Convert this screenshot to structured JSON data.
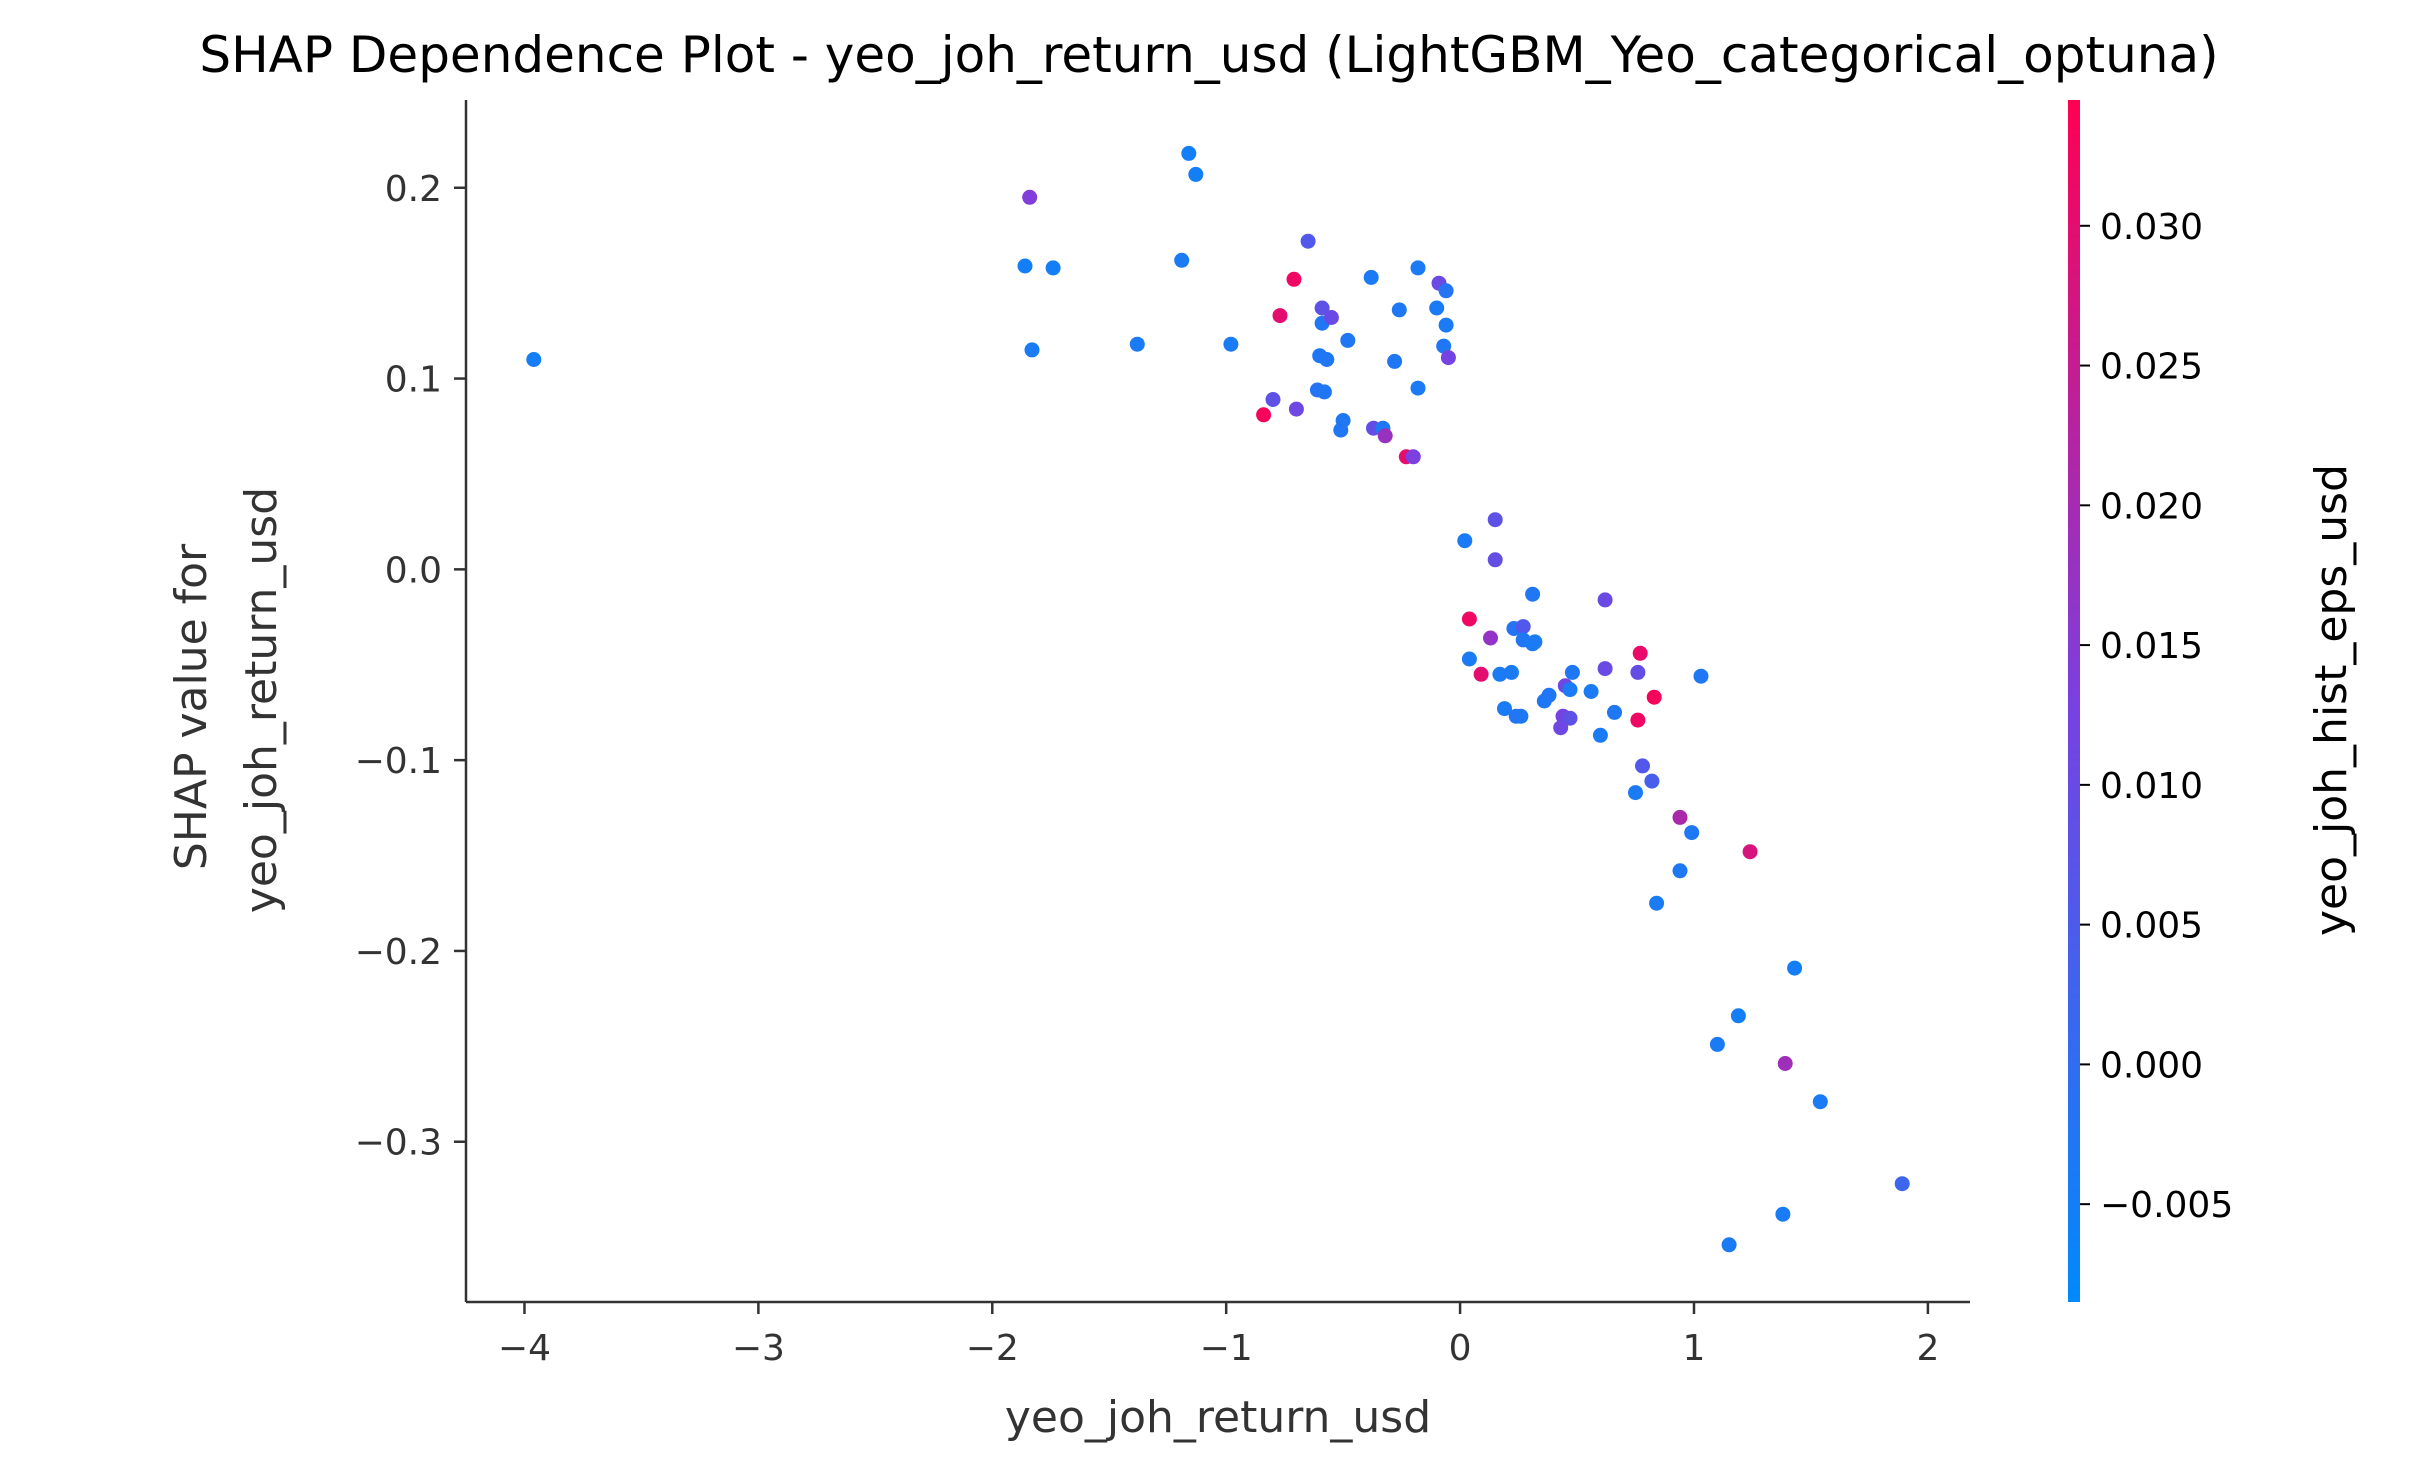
{
  "chart_data": {
    "type": "scatter",
    "title": "SHAP Dependence Plot - yeo_joh_return_usd (LightGBM_Yeo_categorical_optuna)",
    "xlabel": "yeo_joh_return_usd",
    "ylabel": [
      "SHAP value for",
      "yeo_joh_return_usd"
    ],
    "xlim": [
      -4.25,
      2.18
    ],
    "ylim": [
      -0.384,
      0.246
    ],
    "xticks": [
      -4,
      -3,
      -2,
      -1,
      0,
      1,
      2
    ],
    "xtick_labels": [
      "−4",
      "−3",
      "−2",
      "−1",
      "0",
      "1",
      "2"
    ],
    "yticks": [
      0.2,
      0.1,
      0.0,
      -0.1,
      -0.2,
      -0.3
    ],
    "ytick_labels": [
      "0.2",
      "0.1",
      "0.0",
      "−0.1",
      "−0.2",
      "−0.3"
    ],
    "grid": false,
    "colorbar": {
      "label": "yeo_joh_hist_eps_usd",
      "range": [
        -0.0085,
        0.0345
      ],
      "ticks": [
        0.03,
        0.025,
        0.02,
        0.015,
        0.01,
        0.005,
        0.0,
        -0.005
      ],
      "tick_labels": [
        "0.030",
        "0.025",
        "0.020",
        "0.015",
        "0.010",
        "0.005",
        "0.000",
        "−0.005"
      ],
      "colormap": [
        "#008afb",
        "#7a40e0",
        "#ff0052"
      ]
    },
    "points": [
      {
        "x": -3.96,
        "y": 0.11,
        "c": -0.005
      },
      {
        "x": -1.84,
        "y": 0.195,
        "c": 0.014
      },
      {
        "x": -1.86,
        "y": 0.159,
        "c": -0.005
      },
      {
        "x": -1.74,
        "y": 0.158,
        "c": -0.005
      },
      {
        "x": -1.83,
        "y": 0.115,
        "c": -0.004
      },
      {
        "x": -1.38,
        "y": 0.118,
        "c": -0.004
      },
      {
        "x": -1.16,
        "y": 0.218,
        "c": -0.005
      },
      {
        "x": -1.13,
        "y": 0.207,
        "c": -0.005
      },
      {
        "x": -1.19,
        "y": 0.162,
        "c": -0.004
      },
      {
        "x": -0.98,
        "y": 0.118,
        "c": -0.004
      },
      {
        "x": -0.65,
        "y": 0.172,
        "c": 0.006
      },
      {
        "x": -0.71,
        "y": 0.152,
        "c": 0.032
      },
      {
        "x": -0.77,
        "y": 0.133,
        "c": 0.03
      },
      {
        "x": -0.59,
        "y": 0.137,
        "c": 0.008
      },
      {
        "x": -0.59,
        "y": 0.129,
        "c": -0.003
      },
      {
        "x": -0.55,
        "y": 0.132,
        "c": 0.01
      },
      {
        "x": -0.48,
        "y": 0.12,
        "c": -0.003
      },
      {
        "x": -0.6,
        "y": 0.112,
        "c": -0.003
      },
      {
        "x": -0.57,
        "y": 0.11,
        "c": -0.003
      },
      {
        "x": -0.38,
        "y": 0.153,
        "c": -0.004
      },
      {
        "x": -0.18,
        "y": 0.158,
        "c": -0.004
      },
      {
        "x": -0.26,
        "y": 0.136,
        "c": -0.003
      },
      {
        "x": -0.09,
        "y": 0.15,
        "c": 0.01
      },
      {
        "x": -0.06,
        "y": 0.146,
        "c": -0.002
      },
      {
        "x": -0.1,
        "y": 0.137,
        "c": -0.004
      },
      {
        "x": -0.06,
        "y": 0.128,
        "c": -0.004
      },
      {
        "x": -0.07,
        "y": 0.117,
        "c": -0.003
      },
      {
        "x": -0.05,
        "y": 0.111,
        "c": 0.012
      },
      {
        "x": -0.28,
        "y": 0.109,
        "c": -0.003
      },
      {
        "x": -0.18,
        "y": 0.095,
        "c": -0.004
      },
      {
        "x": -0.61,
        "y": 0.094,
        "c": -0.002
      },
      {
        "x": -0.58,
        "y": 0.093,
        "c": -0.003
      },
      {
        "x": -0.8,
        "y": 0.089,
        "c": 0.008
      },
      {
        "x": -0.84,
        "y": 0.081,
        "c": 0.033
      },
      {
        "x": -0.7,
        "y": 0.084,
        "c": 0.011
      },
      {
        "x": -0.5,
        "y": 0.078,
        "c": -0.003
      },
      {
        "x": -0.51,
        "y": 0.073,
        "c": -0.003
      },
      {
        "x": -0.37,
        "y": 0.074,
        "c": 0.009
      },
      {
        "x": -0.33,
        "y": 0.074,
        "c": -0.003
      },
      {
        "x": -0.32,
        "y": 0.07,
        "c": 0.018
      },
      {
        "x": -0.23,
        "y": 0.059,
        "c": 0.03
      },
      {
        "x": -0.2,
        "y": 0.059,
        "c": 0.013
      },
      {
        "x": 0.15,
        "y": 0.026,
        "c": 0.008
      },
      {
        "x": 0.02,
        "y": 0.015,
        "c": -0.004
      },
      {
        "x": 0.15,
        "y": 0.005,
        "c": 0.009
      },
      {
        "x": 0.31,
        "y": -0.013,
        "c": -0.003
      },
      {
        "x": 0.62,
        "y": -0.016,
        "c": 0.01
      },
      {
        "x": 0.04,
        "y": -0.026,
        "c": 0.032
      },
      {
        "x": 0.23,
        "y": -0.031,
        "c": -0.002
      },
      {
        "x": 0.27,
        "y": -0.03,
        "c": 0.006
      },
      {
        "x": 0.13,
        "y": -0.036,
        "c": 0.017
      },
      {
        "x": 0.27,
        "y": -0.037,
        "c": -0.003
      },
      {
        "x": 0.31,
        "y": -0.039,
        "c": -0.004
      },
      {
        "x": 0.32,
        "y": -0.038,
        "c": -0.004
      },
      {
        "x": 0.77,
        "y": -0.044,
        "c": 0.031
      },
      {
        "x": 0.04,
        "y": -0.047,
        "c": -0.004
      },
      {
        "x": 0.09,
        "y": -0.055,
        "c": 0.03
      },
      {
        "x": 0.17,
        "y": -0.055,
        "c": -0.004
      },
      {
        "x": 0.22,
        "y": -0.054,
        "c": -0.004
      },
      {
        "x": 0.48,
        "y": -0.054,
        "c": -0.003
      },
      {
        "x": 0.62,
        "y": -0.052,
        "c": 0.01
      },
      {
        "x": 0.76,
        "y": -0.054,
        "c": 0.009
      },
      {
        "x": 1.03,
        "y": -0.056,
        "c": -0.003
      },
      {
        "x": 0.45,
        "y": -0.061,
        "c": 0.011
      },
      {
        "x": 0.47,
        "y": -0.063,
        "c": -0.004
      },
      {
        "x": 0.38,
        "y": -0.066,
        "c": -0.003
      },
      {
        "x": 0.56,
        "y": -0.064,
        "c": -0.004
      },
      {
        "x": 0.36,
        "y": -0.069,
        "c": -0.003
      },
      {
        "x": 0.83,
        "y": -0.067,
        "c": 0.033
      },
      {
        "x": 0.19,
        "y": -0.073,
        "c": -0.004
      },
      {
        "x": 0.24,
        "y": -0.077,
        "c": -0.002
      },
      {
        "x": 0.26,
        "y": -0.077,
        "c": -0.003
      },
      {
        "x": 0.44,
        "y": -0.077,
        "c": 0.012
      },
      {
        "x": 0.47,
        "y": -0.078,
        "c": 0.008
      },
      {
        "x": 0.66,
        "y": -0.075,
        "c": -0.003
      },
      {
        "x": 0.76,
        "y": -0.079,
        "c": 0.032
      },
      {
        "x": 0.43,
        "y": -0.083,
        "c": 0.011
      },
      {
        "x": 0.6,
        "y": -0.087,
        "c": -0.004
      },
      {
        "x": 0.78,
        "y": -0.103,
        "c": 0.006
      },
      {
        "x": 0.82,
        "y": -0.111,
        "c": 0.004
      },
      {
        "x": 0.75,
        "y": -0.117,
        "c": -0.004
      },
      {
        "x": 0.94,
        "y": -0.13,
        "c": 0.021
      },
      {
        "x": 0.99,
        "y": -0.138,
        "c": -0.003
      },
      {
        "x": 1.24,
        "y": -0.148,
        "c": 0.028
      },
      {
        "x": 0.94,
        "y": -0.158,
        "c": -0.003
      },
      {
        "x": 0.84,
        "y": -0.175,
        "c": -0.004
      },
      {
        "x": 1.43,
        "y": -0.209,
        "c": -0.005
      },
      {
        "x": 1.19,
        "y": -0.234,
        "c": -0.005
      },
      {
        "x": 1.1,
        "y": -0.249,
        "c": -0.004
      },
      {
        "x": 1.39,
        "y": -0.259,
        "c": 0.019
      },
      {
        "x": 1.54,
        "y": -0.279,
        "c": -0.004
      },
      {
        "x": 1.89,
        "y": -0.322,
        "c": 0.002
      },
      {
        "x": 1.38,
        "y": -0.338,
        "c": -0.004
      },
      {
        "x": 1.15,
        "y": -0.354,
        "c": -0.004
      }
    ]
  }
}
